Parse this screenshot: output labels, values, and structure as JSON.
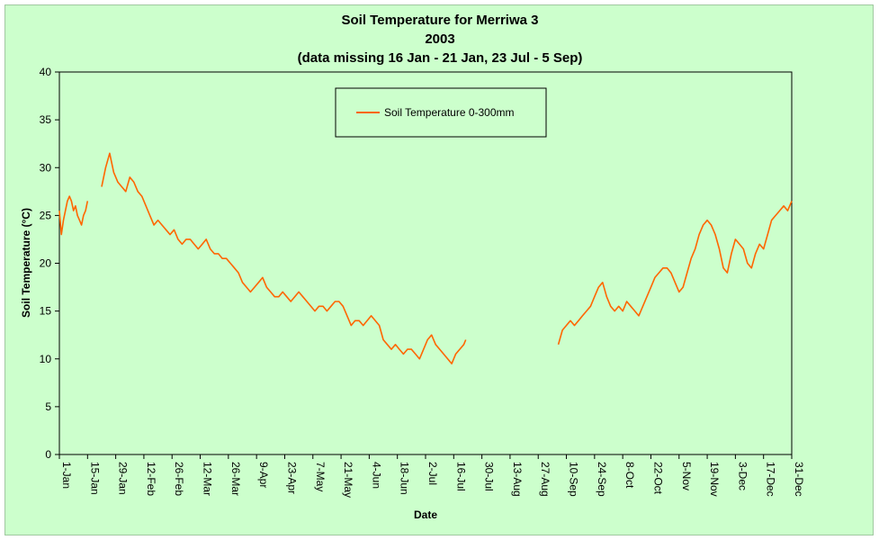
{
  "chart_data": {
    "type": "line",
    "title": [
      "Soil Temperature for Merriwa 3",
      "2003",
      "(data missing 16 Jan - 21 Jan, 23 Jul - 5 Sep)"
    ],
    "xlabel": "Date",
    "ylabel": "Soil Temperature (°C)",
    "ylim": [
      0,
      40
    ],
    "yticks": [
      0,
      5,
      10,
      15,
      20,
      25,
      30,
      35,
      40
    ],
    "xlim": [
      "2003-01-01",
      "2003-12-31"
    ],
    "xtick_labels": [
      "1-Jan",
      "15-Jan",
      "29-Jan",
      "12-Feb",
      "26-Feb",
      "12-Mar",
      "26-Mar",
      "9-Apr",
      "23-Apr",
      "7-May",
      "21-May",
      "4-Jun",
      "18-Jun",
      "2-Jul",
      "16-Jul",
      "30-Jul",
      "13-Aug",
      "27-Aug",
      "10-Sep",
      "24-Sep",
      "8-Oct",
      "22-Oct",
      "5-Nov",
      "19-Nov",
      "3-Dec",
      "17-Dec",
      "31-Dec"
    ],
    "grid": false,
    "legend_position": "top-center",
    "colors": {
      "line": "#ff6600",
      "plot_bg": "#ccffcc",
      "axis": "#000000"
    },
    "series": [
      {
        "name": "Soil Temperature  0-300mm",
        "segments": [
          {
            "x": [
              "2003-01-01",
              "2003-01-02",
              "2003-01-03",
              "2003-01-04",
              "2003-01-05",
              "2003-01-06",
              "2003-01-07",
              "2003-01-08",
              "2003-01-09",
              "2003-01-10",
              "2003-01-11",
              "2003-01-12",
              "2003-01-13",
              "2003-01-14",
              "2003-01-15"
            ],
            "y": [
              25.5,
              23.0,
              24.5,
              25.5,
              26.5,
              27.0,
              26.5,
              25.5,
              26.0,
              25.0,
              24.5,
              24.0,
              25.0,
              25.5,
              26.5
            ]
          },
          {
            "x": [
              "2003-01-22",
              "2003-01-24",
              "2003-01-26",
              "2003-01-28",
              "2003-01-30",
              "2003-02-01",
              "2003-02-03",
              "2003-02-05",
              "2003-02-07",
              "2003-02-09",
              "2003-02-11",
              "2003-02-13",
              "2003-02-15",
              "2003-02-17",
              "2003-02-19",
              "2003-02-21",
              "2003-02-23",
              "2003-02-25",
              "2003-02-27",
              "2003-03-01",
              "2003-03-03",
              "2003-03-05",
              "2003-03-07",
              "2003-03-09",
              "2003-03-11",
              "2003-03-13",
              "2003-03-15",
              "2003-03-17",
              "2003-03-19",
              "2003-03-21",
              "2003-03-23",
              "2003-03-25",
              "2003-03-27",
              "2003-03-29",
              "2003-03-31",
              "2003-04-02",
              "2003-04-04",
              "2003-04-06",
              "2003-04-08",
              "2003-04-10",
              "2003-04-12",
              "2003-04-14",
              "2003-04-16",
              "2003-04-18",
              "2003-04-20",
              "2003-04-22",
              "2003-04-24",
              "2003-04-26",
              "2003-04-28",
              "2003-04-30",
              "2003-05-02",
              "2003-05-04",
              "2003-05-06",
              "2003-05-08",
              "2003-05-10",
              "2003-05-12",
              "2003-05-14",
              "2003-05-16",
              "2003-05-18",
              "2003-05-20",
              "2003-05-22",
              "2003-05-24",
              "2003-05-26",
              "2003-05-28",
              "2003-05-30",
              "2003-06-01",
              "2003-06-03",
              "2003-06-05",
              "2003-06-07",
              "2003-06-09",
              "2003-06-11",
              "2003-06-13",
              "2003-06-15",
              "2003-06-17",
              "2003-06-19",
              "2003-06-21",
              "2003-06-23",
              "2003-06-25",
              "2003-06-27",
              "2003-06-29",
              "2003-07-01",
              "2003-07-03",
              "2003-07-05",
              "2003-07-07",
              "2003-07-09",
              "2003-07-11",
              "2003-07-13",
              "2003-07-15",
              "2003-07-17",
              "2003-07-19",
              "2003-07-21",
              "2003-07-22"
            ],
            "y": [
              28.0,
              30.0,
              31.5,
              29.5,
              28.5,
              28.0,
              27.5,
              29.0,
              28.5,
              27.5,
              27.0,
              26.0,
              25.0,
              24.0,
              24.5,
              24.0,
              23.5,
              23.0,
              23.5,
              22.5,
              22.0,
              22.5,
              22.5,
              22.0,
              21.5,
              22.0,
              22.5,
              21.5,
              21.0,
              21.0,
              20.5,
              20.5,
              20.0,
              19.5,
              19.0,
              18.0,
              17.5,
              17.0,
              17.5,
              18.0,
              18.5,
              17.5,
              17.0,
              16.5,
              16.5,
              17.0,
              16.5,
              16.0,
              16.5,
              17.0,
              16.5,
              16.0,
              15.5,
              15.0,
              15.5,
              15.5,
              15.0,
              15.5,
              16.0,
              16.0,
              15.5,
              14.5,
              13.5,
              14.0,
              14.0,
              13.5,
              14.0,
              14.5,
              14.0,
              13.5,
              12.0,
              11.5,
              11.0,
              11.5,
              11.0,
              10.5,
              11.0,
              11.0,
              10.5,
              10.0,
              11.0,
              12.0,
              12.5,
              11.5,
              11.0,
              10.5,
              10.0,
              9.5,
              10.5,
              11.0,
              11.5,
              12.0
            ]
          },
          {
            "x": [
              "2003-09-06",
              "2003-09-08",
              "2003-09-10",
              "2003-09-12",
              "2003-09-14",
              "2003-09-16",
              "2003-09-18",
              "2003-09-20",
              "2003-09-22",
              "2003-09-24",
              "2003-09-26",
              "2003-09-28",
              "2003-09-30",
              "2003-10-02",
              "2003-10-04",
              "2003-10-06",
              "2003-10-08",
              "2003-10-10",
              "2003-10-12",
              "2003-10-14",
              "2003-10-16",
              "2003-10-18",
              "2003-10-20",
              "2003-10-22",
              "2003-10-24",
              "2003-10-26",
              "2003-10-28",
              "2003-10-30",
              "2003-11-01",
              "2003-11-03",
              "2003-11-05",
              "2003-11-07",
              "2003-11-09",
              "2003-11-11",
              "2003-11-13",
              "2003-11-15",
              "2003-11-17",
              "2003-11-19",
              "2003-11-21",
              "2003-11-23",
              "2003-11-25",
              "2003-11-27",
              "2003-11-29",
              "2003-12-01",
              "2003-12-03",
              "2003-12-05",
              "2003-12-07",
              "2003-12-09",
              "2003-12-11",
              "2003-12-13",
              "2003-12-15",
              "2003-12-17",
              "2003-12-19",
              "2003-12-21",
              "2003-12-23",
              "2003-12-25",
              "2003-12-27",
              "2003-12-29",
              "2003-12-31"
            ],
            "y": [
              11.5,
              13.0,
              13.5,
              14.0,
              13.5,
              14.0,
              14.5,
              15.0,
              15.5,
              16.5,
              17.5,
              18.0,
              16.5,
              15.5,
              15.0,
              15.5,
              15.0,
              16.0,
              15.5,
              15.0,
              14.5,
              15.5,
              16.5,
              17.5,
              18.5,
              19.0,
              19.5,
              19.5,
              19.0,
              18.0,
              17.0,
              17.5,
              19.0,
              20.5,
              21.5,
              23.0,
              24.0,
              24.5,
              24.0,
              23.0,
              21.5,
              19.5,
              19.0,
              21.0,
              22.5,
              22.0,
              21.5,
              20.0,
              19.5,
              21.0,
              22.0,
              21.5,
              23.0,
              24.5,
              25.0,
              25.5,
              26.0,
              25.5,
              26.5
            ]
          }
        ]
      }
    ]
  }
}
